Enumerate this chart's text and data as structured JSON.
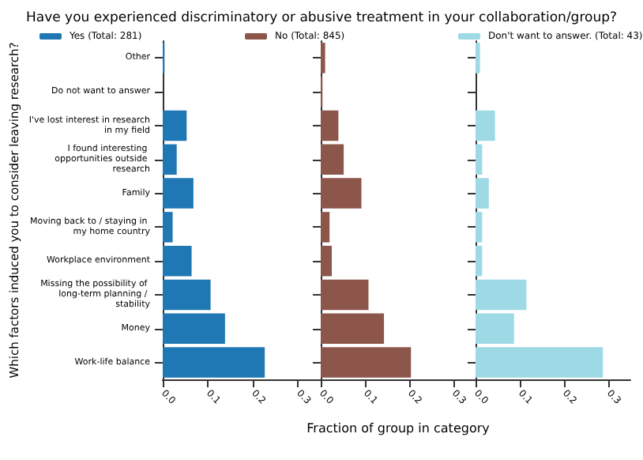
{
  "chart_data": [
    {
      "type": "bar",
      "orientation": "horizontal",
      "title": "Have you experienced discriminatory or abusive treatment in your collaboration/group?",
      "ylabel": "Which factors induced you to consider leaving research?",
      "categories": [
        "Other",
        "Do not want to answer",
        "I've lost interest in research in my field",
        "I found interesting opportunities outside research",
        "Family",
        "Moving back to / staying in my home country",
        "Workplace environment",
        "Missing the possibility of long-term planning / stability",
        "Money",
        "Work-life balance"
      ],
      "series": [
        {
          "name": "Yes (Total: 281)",
          "color": "#1f77b4",
          "values": [
            0.004,
            0,
            0.053,
            0.031,
            0.068,
            0.022,
            0.064,
            0.106,
            0.138,
            0.226
          ]
        }
      ],
      "xlim": [
        0,
        0.35
      ],
      "xticks": [
        {
          "value": 0,
          "label": "0.0"
        },
        {
          "value": 0.1,
          "label": "0.1"
        },
        {
          "value": 0.2,
          "label": "0.2"
        },
        {
          "value": 0.3,
          "label": "0.3"
        }
      ],
      "legend": "top"
    },
    {
      "type": "bar",
      "orientation": "horizontal",
      "xlabel": "Fraction of group in category",
      "categories": [
        "Other",
        "Do not want to answer",
        "I've lost interest in research in my field",
        "I found interesting opportunities outside research",
        "Family",
        "Moving back to / staying in my home country",
        "Workplace environment",
        "Missing the possibility of long-term planning / stability",
        "Money",
        "Work-life balance"
      ],
      "series": [
        {
          "name": "No (Total: 845)",
          "color": "#8c564b",
          "values": [
            0.01,
            0.004,
            0.04,
            0.052,
            0.092,
            0.02,
            0.025,
            0.108,
            0.143,
            0.204
          ]
        }
      ],
      "xlim": [
        0,
        0.35
      ],
      "xticks": [
        {
          "value": 0,
          "label": "0.0"
        },
        {
          "value": 0.1,
          "label": "0.1"
        },
        {
          "value": 0.2,
          "label": "0.2"
        },
        {
          "value": 0.3,
          "label": "0.3"
        }
      ],
      "legend": "top",
      "tick_labels": "x"
    },
    {
      "type": "bar",
      "orientation": "horizontal",
      "categories": [
        "Other",
        "Do not want to answer",
        "I've lost interest in research in my field",
        "I found interesting opportunities outside research",
        "Family",
        "Moving back to / staying in my home country",
        "Workplace environment",
        "Missing the possibility of long-term planning / stability",
        "Money",
        "Work-life balance"
      ],
      "series": [
        {
          "name": "Don't want to answer. (Total: 43)",
          "color": "#9edae5",
          "values": [
            0.01,
            0,
            0.044,
            0.015,
            0.03,
            0.015,
            0.015,
            0.115,
            0.087,
            0.288
          ]
        }
      ],
      "xlim": [
        0,
        0.35
      ],
      "xticks": [
        {
          "value": 0,
          "label": "0.0"
        },
        {
          "value": 0.1,
          "label": "0.1"
        },
        {
          "value": 0.2,
          "label": "0.2"
        },
        {
          "value": 0.3,
          "label": "0.3"
        }
      ],
      "legend": "top",
      "tick_labels": "x"
    }
  ]
}
